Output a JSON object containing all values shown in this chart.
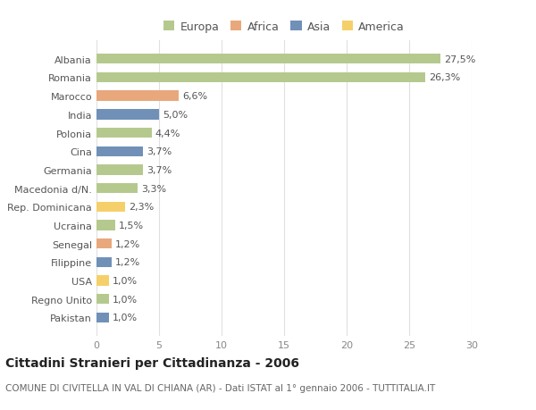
{
  "categories": [
    "Albania",
    "Romania",
    "Marocco",
    "India",
    "Polonia",
    "Cina",
    "Germania",
    "Macedonia d/N.",
    "Rep. Dominicana",
    "Ucraina",
    "Senegal",
    "Filippine",
    "USA",
    "Regno Unito",
    "Pakistan"
  ],
  "values": [
    27.5,
    26.3,
    6.6,
    5.0,
    4.4,
    3.7,
    3.7,
    3.3,
    2.3,
    1.5,
    1.2,
    1.2,
    1.0,
    1.0,
    1.0
  ],
  "labels": [
    "27,5%",
    "26,3%",
    "6,6%",
    "5,0%",
    "4,4%",
    "3,7%",
    "3,7%",
    "3,3%",
    "2,3%",
    "1,5%",
    "1,2%",
    "1,2%",
    "1,0%",
    "1,0%",
    "1,0%"
  ],
  "continents": [
    "Europa",
    "Europa",
    "Africa",
    "Asia",
    "Europa",
    "Asia",
    "Europa",
    "Europa",
    "America",
    "Europa",
    "Africa",
    "Asia",
    "America",
    "Europa",
    "Asia"
  ],
  "continent_colors": {
    "Europa": "#b5c98e",
    "Africa": "#e8a87c",
    "Asia": "#7090b8",
    "America": "#f5d06a"
  },
  "legend_labels": [
    "Europa",
    "Africa",
    "Asia",
    "America"
  ],
  "legend_colors": [
    "#b5c98e",
    "#e8a87c",
    "#7090b8",
    "#f5d06a"
  ],
  "xlim": [
    0,
    30
  ],
  "xticks": [
    0,
    5,
    10,
    15,
    20,
    25,
    30
  ],
  "title": "Cittadini Stranieri per Cittadinanza - 2006",
  "subtitle": "COMUNE DI CIVITELLA IN VAL DI CHIANA (AR) - Dati ISTAT al 1° gennaio 2006 - TUTTITALIA.IT",
  "background_color": "#ffffff",
  "bar_height": 0.55,
  "title_fontsize": 10,
  "subtitle_fontsize": 7.5,
  "label_fontsize": 8,
  "tick_fontsize": 8,
  "legend_fontsize": 9
}
